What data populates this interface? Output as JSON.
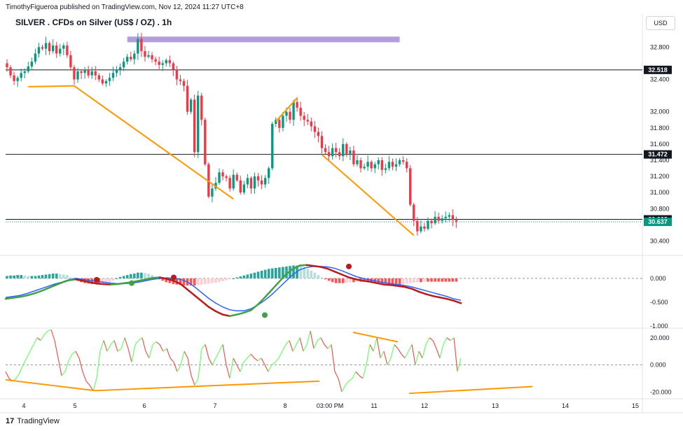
{
  "header": {
    "publisher": "TimothyFigueroa published on TradingView.com, Nov 12, 2024 11:27 UTC+8",
    "title": "SILVER . CFDs on Silver (US$ / OZ) . 1h",
    "currency": "USD"
  },
  "footer": {
    "brand": "TradingView",
    "logo_glyph": "17"
  },
  "colors": {
    "up": "#089981",
    "down": "#f23645",
    "orange": "#ff9800",
    "purple": "#b39ddb",
    "macd_line": "#2962ff",
    "histo_up_strong": "#26a69a",
    "histo_up_weak": "#b2dfdb",
    "histo_down_strong": "#ff5252",
    "histo_down_weak": "#ffcdd2",
    "ribbon_green": "#43a047",
    "ribbon_red": "#b71c1c",
    "osc_green": "#66ff66",
    "osc_red": "#ef5350",
    "label_dark": "#131722",
    "last_price": "#089981"
  },
  "chart_data": [
    {
      "type": "candlestick",
      "panel": "price",
      "title": "SILVER . CFDs on Silver (US$ / OZ) . 1h",
      "ylim": [
        30.3,
        32.95
      ],
      "y_ticks": [
        "32.800",
        "32.400",
        "32.000",
        "31.800",
        "31.600",
        "31.400",
        "31.200",
        "31.000",
        "30.800",
        "30.400"
      ],
      "y_tick_values": [
        32.8,
        32.4,
        32.0,
        31.8,
        31.6,
        31.4,
        31.2,
        31.0,
        30.8,
        30.4
      ],
      "x_ticks": [
        "4",
        "5",
        "6",
        "7",
        "8",
        "03:00 PM",
        "11",
        "12",
        "13",
        "14",
        "15"
      ],
      "horizontal_levels": [
        {
          "label": "32.518",
          "value": 32.518,
          "style": "black"
        },
        {
          "label": "31.472",
          "value": 31.472,
          "style": "black"
        },
        {
          "label": "30.668",
          "value": 30.668,
          "style": "black"
        },
        {
          "label": "30.637",
          "value": 30.637,
          "style": "last-price"
        }
      ],
      "zone": {
        "from_bar": 34,
        "to_bar": 111,
        "low": 32.86,
        "high": 32.93,
        "color": "purple"
      },
      "trendlines": [
        {
          "x1": 6,
          "y1": 32.31,
          "x2": 19,
          "y2": 32.32
        },
        {
          "x1": 19,
          "y1": 32.32,
          "x2": 64,
          "y2": 30.92
        },
        {
          "x1": 76,
          "y1": 31.88,
          "x2": 82,
          "y2": 32.17
        },
        {
          "x1": 89,
          "y1": 31.47,
          "x2": 115,
          "y2": 30.47
        }
      ],
      "closes": [
        32.55,
        32.45,
        32.38,
        32.42,
        32.48,
        32.5,
        32.56,
        32.62,
        32.72,
        32.8,
        32.78,
        32.85,
        32.75,
        32.82,
        32.72,
        32.78,
        32.82,
        32.7,
        32.55,
        32.4,
        32.5,
        32.48,
        32.52,
        32.45,
        32.5,
        32.45,
        32.4,
        32.35,
        32.38,
        32.42,
        32.48,
        32.52,
        32.55,
        32.62,
        32.68,
        32.65,
        32.72,
        32.9,
        32.75,
        32.68,
        32.7,
        32.65,
        32.62,
        32.58,
        32.6,
        32.64,
        32.6,
        32.52,
        32.4,
        32.38,
        32.32,
        32.0,
        32.15,
        31.5,
        32.2,
        31.9,
        31.35,
        30.95,
        31.05,
        31.12,
        31.25,
        31.2,
        31.18,
        31.05,
        31.22,
        31.15,
        31.0,
        31.1,
        31.18,
        31.05,
        31.2,
        31.15,
        31.1,
        31.18,
        31.3,
        31.85,
        31.9,
        31.8,
        31.95,
        32.0,
        31.9,
        32.12,
        32.05,
        31.95,
        31.9,
        31.88,
        31.82,
        31.75,
        31.7,
        31.55,
        31.5,
        31.45,
        31.55,
        31.5,
        31.45,
        31.6,
        31.48,
        31.52,
        31.35,
        31.4,
        31.3,
        31.32,
        31.38,
        31.3,
        31.35,
        31.4,
        31.28,
        31.3,
        31.38,
        31.32,
        31.35,
        31.4,
        31.38,
        31.3,
        30.85,
        30.65,
        30.52,
        30.58,
        30.55,
        30.65,
        30.62,
        30.7,
        30.65,
        30.68,
        30.7,
        30.72,
        30.66,
        30.64
      ]
    },
    {
      "type": "histogram+lines",
      "panel": "macd",
      "ylim": [
        -1.0,
        0.35
      ],
      "y_ticks": [
        "0.000",
        "-0.500",
        "-1.000"
      ],
      "y_tick_values": [
        0.0,
        -0.5,
        -1.0
      ],
      "histogram": [
        0.05,
        0.06,
        0.06,
        0.07,
        0.07,
        0.06,
        0.05,
        0.05,
        0.05,
        0.06,
        0.07,
        0.08,
        0.09,
        0.1,
        0.1,
        0.09,
        0.08,
        0.07,
        0.02,
        -0.03,
        -0.05,
        -0.08,
        -0.1,
        -0.11,
        -0.12,
        -0.12,
        -0.12,
        -0.11,
        -0.1,
        -0.08,
        -0.05,
        0.0,
        0.03,
        0.05,
        0.07,
        0.09,
        0.1,
        0.12,
        0.12,
        0.11,
        0.1,
        0.07,
        0.03,
        -0.02,
        -0.05,
        -0.08,
        -0.1,
        -0.12,
        -0.13,
        -0.14,
        -0.15,
        -0.15,
        -0.15,
        -0.15,
        -0.14,
        -0.13,
        -0.12,
        -0.11,
        -0.1,
        -0.09,
        -0.08,
        -0.06,
        -0.04,
        -0.02,
        0.0,
        0.02,
        0.04,
        0.06,
        0.08,
        0.1,
        0.12,
        0.14,
        0.16,
        0.18,
        0.2,
        0.21,
        0.22,
        0.23,
        0.24,
        0.25,
        0.26,
        0.27,
        0.27,
        0.26,
        0.24,
        0.2,
        0.16,
        0.12,
        0.07,
        0.02,
        -0.02,
        -0.05,
        -0.08,
        -0.1,
        -0.1,
        -0.1,
        -0.09,
        -0.08,
        -0.08,
        -0.07,
        -0.07,
        -0.07,
        -0.08,
        -0.09,
        -0.1,
        -0.1,
        -0.11,
        -0.11,
        -0.12,
        -0.12,
        -0.12,
        -0.13,
        -0.12,
        -0.11,
        -0.1,
        -0.09,
        -0.08,
        -0.08,
        -0.07,
        -0.07,
        -0.07,
        -0.07,
        -0.07,
        -0.07,
        -0.07,
        -0.07,
        -0.07,
        -0.07
      ],
      "macd_line": [
        -0.4,
        -0.38,
        -0.36,
        -0.32,
        -0.27,
        -0.22,
        -0.17,
        -0.12,
        -0.08,
        -0.03,
        0.0,
        -0.02,
        -0.04,
        -0.06,
        -0.08,
        -0.1,
        -0.11,
        -0.11,
        -0.1,
        -0.08,
        -0.05,
        -0.02,
        0.0,
        0.01,
        0.0,
        -0.02,
        -0.08,
        -0.18,
        -0.3,
        -0.42,
        -0.52,
        -0.6,
        -0.66,
        -0.68,
        -0.68,
        -0.64,
        -0.56,
        -0.46,
        -0.34,
        -0.2,
        -0.06,
        0.08,
        0.18,
        0.23,
        0.25,
        0.25,
        0.24,
        0.21,
        0.16,
        0.1,
        0.04,
        0.0,
        -0.03,
        -0.06,
        -0.09,
        -0.11,
        -0.13,
        -0.15,
        -0.18,
        -0.22,
        -0.26,
        -0.3,
        -0.34,
        -0.38,
        -0.43,
        -0.46
      ],
      "ribbon_line": [
        -0.43,
        -0.41,
        -0.39,
        -0.36,
        -0.32,
        -0.27,
        -0.21,
        -0.15,
        -0.09,
        -0.04,
        -0.02,
        -0.05,
        -0.08,
        -0.11,
        -0.12,
        -0.13,
        -0.12,
        -0.1,
        -0.08,
        -0.05,
        -0.02,
        0.01,
        0.02,
        -0.01,
        -0.05,
        -0.12,
        -0.24,
        -0.36,
        -0.48,
        -0.6,
        -0.69,
        -0.76,
        -0.79,
        -0.76,
        -0.72,
        -0.67,
        -0.55,
        -0.4,
        -0.24,
        -0.08,
        0.08,
        0.2,
        0.27,
        0.28,
        0.26,
        0.24,
        0.2,
        0.14,
        0.08,
        0.02,
        -0.02,
        -0.05,
        -0.07,
        -0.1,
        -0.13,
        -0.14,
        -0.16,
        -0.18,
        -0.22,
        -0.28,
        -0.33,
        -0.37,
        -0.4,
        -0.43,
        -0.47,
        -0.52
      ],
      "signal_dots": [
        {
          "index": 13,
          "value": -0.03,
          "type": "bearish"
        },
        {
          "index": 18,
          "value": -0.1,
          "type": "bullish"
        },
        {
          "index": 24,
          "value": 0.02,
          "type": "bearish"
        },
        {
          "index": 37,
          "value": -0.77,
          "type": "bullish"
        },
        {
          "index": 49,
          "value": 0.25,
          "type": "bearish"
        }
      ]
    },
    {
      "type": "line",
      "panel": "oscillator",
      "ylim": [
        -24,
        24
      ],
      "y_ticks": [
        "20.000",
        "0.000",
        "-20.000"
      ],
      "y_tick_values": [
        20.0,
        0.0,
        -20.0
      ],
      "values": [
        -5,
        -10,
        -12,
        -10,
        -6,
        0,
        5,
        10,
        15,
        20,
        18,
        22,
        25,
        26,
        18,
        5,
        -8,
        -5,
        3,
        8,
        10,
        5,
        -5,
        -12,
        -15,
        -19,
        -10,
        10,
        18,
        10,
        15,
        18,
        10,
        12,
        20,
        12,
        2,
        15,
        18,
        20,
        10,
        5,
        15,
        17,
        15,
        10,
        12,
        5,
        2,
        -5,
        0,
        10,
        5,
        -8,
        -15,
        -10,
        12,
        15,
        5,
        0,
        5,
        10,
        15,
        0,
        -10,
        5,
        0,
        -5,
        2,
        5,
        8,
        5,
        3,
        5,
        0,
        -5,
        0,
        2,
        5,
        10,
        15,
        18,
        10,
        15,
        20,
        10,
        15,
        25,
        12,
        18,
        20,
        15,
        12,
        15,
        -5,
        -10,
        -20,
        -15,
        -12,
        -10,
        -5,
        -8,
        -10,
        0,
        15,
        10,
        20,
        5,
        10,
        0,
        5,
        15,
        12,
        8,
        5,
        10,
        15,
        0,
        10,
        5,
        15,
        20,
        18,
        12,
        5,
        15,
        20,
        18,
        20,
        -5,
        5
      ],
      "divergence_lines": [
        {
          "x1": 0,
          "y1": -11,
          "x2": 16,
          "y2": -19
        },
        {
          "x1": 16,
          "y1": -19,
          "x2": 56,
          "y2": -12
        },
        {
          "x1": 62,
          "y1": 24,
          "x2": 70,
          "y2": 17
        },
        {
          "x1": 72,
          "y1": -21,
          "x2": 94,
          "y2": -16
        }
      ]
    }
  ]
}
